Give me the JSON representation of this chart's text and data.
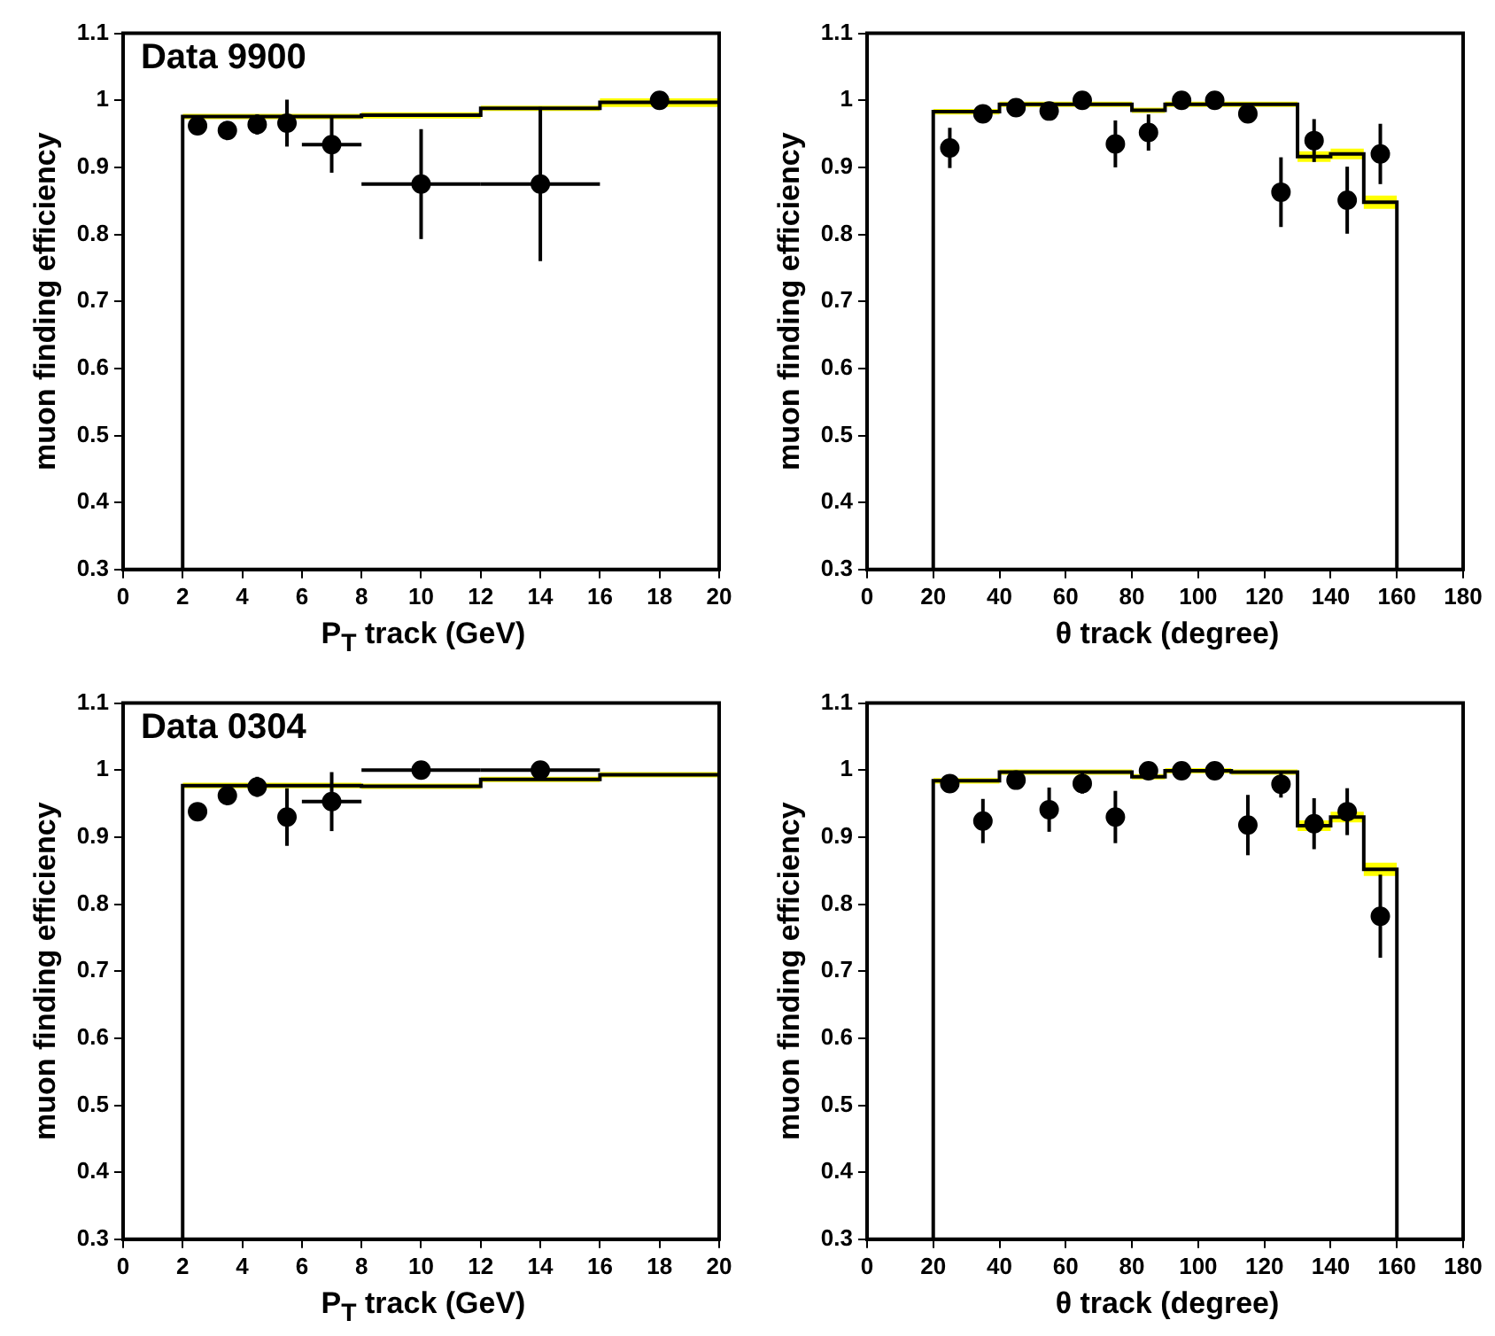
{
  "chart_data": [
    {
      "type": "step",
      "title": "Data 9900",
      "xlabel": "P$_{T}$ track (GeV)",
      "ylabel": "muon finding efficiency",
      "xlim": [
        0,
        20
      ],
      "xticks": [
        0,
        2,
        4,
        6,
        8,
        10,
        12,
        14,
        16,
        18,
        20
      ],
      "ylim": [
        0.3,
        1.1
      ],
      "yticks": [
        0.3,
        0.4,
        0.5,
        0.6,
        0.7,
        0.8,
        0.9,
        1,
        1.1
      ],
      "grid": false,
      "series": [
        {
          "color": "#000000",
          "marker": "none",
          "x": [
            2,
            2,
            8,
            12,
            16,
            20,
            20
          ],
          "values": [
            0.3,
            0.976,
            0.978,
            0.988,
            0.997,
            0.997,
            0.3
          ],
          "lower": [
            null,
            0.972,
            0.973,
            0.984,
            0.99,
            0.99,
            null
          ],
          "upper": [
            null,
            0.98,
            0.982,
            0.992,
            1.003,
            1.003,
            null
          ]
        },
        {
          "type": "scatter",
          "color": "#000000",
          "marker": "circle",
          "x": [
            2.5,
            3.5,
            4.5,
            5.5,
            7,
            10,
            14,
            18
          ],
          "values": [
            0.962,
            0.955,
            0.964,
            0.966,
            0.934,
            0.875,
            0.875,
            1.0
          ],
          "errors": [
            0.01,
            0.01,
            0.015,
            0.035,
            0.042,
            0.082,
            0.115,
            0.005
          ],
          "xerrors": [
            null,
            null,
            null,
            null,
            1,
            2,
            2,
            null
          ]
        }
      ]
    },
    {
      "type": "step",
      "xlabel": "θ track (degree)",
      "ylabel": "muon finding efficiency",
      "xlim": [
        0,
        180
      ],
      "xticks": [
        0,
        20,
        40,
        60,
        80,
        100,
        120,
        140,
        160,
        180
      ],
      "ylim": [
        0.3,
        1.1
      ],
      "yticks": [
        0.3,
        0.4,
        0.5,
        0.6,
        0.7,
        0.8,
        0.9,
        1,
        1.1
      ],
      "grid": false,
      "series": [
        {
          "color": "#000000",
          "marker": "none",
          "x": [
            20,
            20,
            30,
            40,
            50,
            60,
            70,
            80,
            90,
            100,
            110,
            120,
            130,
            140,
            150,
            160,
            160
          ],
          "values": [
            0.3,
            0.983,
            0.983,
            0.994,
            0.994,
            0.994,
            0.994,
            0.985,
            0.994,
            0.994,
            0.994,
            0.994,
            0.916,
            0.92,
            0.848,
            0.848,
            0.3
          ],
          "lower": [
            null,
            0.979,
            0.979,
            0.99,
            0.99,
            0.99,
            0.99,
            0.981,
            0.99,
            0.99,
            0.99,
            0.99,
            0.908,
            0.912,
            0.838,
            0.838,
            null
          ],
          "upper": [
            null,
            0.987,
            0.987,
            0.998,
            0.998,
            0.998,
            0.998,
            0.989,
            0.998,
            0.998,
            0.998,
            0.998,
            0.924,
            0.928,
            0.858,
            0.858,
            null
          ]
        },
        {
          "type": "scatter",
          "color": "#000000",
          "marker": "circle",
          "x": [
            25,
            35,
            45,
            55,
            65,
            75,
            85,
            95,
            105,
            115,
            125,
            135,
            145,
            155
          ],
          "values": [
            0.929,
            0.98,
            0.989,
            0.984,
            1.0,
            0.935,
            0.952,
            1.0,
            1.0,
            0.98,
            0.863,
            0.94,
            0.851,
            0.92
          ],
          "errors": [
            0.03,
            0.01,
            0.01,
            0.01,
            0.005,
            0.035,
            0.027,
            0.005,
            0.005,
            0.012,
            0.052,
            0.032,
            0.05,
            0.045
          ]
        }
      ]
    },
    {
      "type": "step",
      "title": "Data 0304",
      "xlabel": "P$_{T}$ track (GeV)",
      "ylabel": "muon finding efficiency",
      "xlim": [
        0,
        20
      ],
      "xticks": [
        0,
        2,
        4,
        6,
        8,
        10,
        12,
        14,
        16,
        18,
        20
      ],
      "ylim": [
        0.3,
        1.1
      ],
      "yticks": [
        0.3,
        0.4,
        0.5,
        0.6,
        0.7,
        0.8,
        0.9,
        1,
        1.1
      ],
      "grid": false,
      "series": [
        {
          "color": "#000000",
          "marker": "none",
          "x": [
            2,
            2,
            8,
            12,
            16,
            20,
            20
          ],
          "values": [
            0.3,
            0.977,
            0.976,
            0.986,
            0.993,
            0.993,
            0.3
          ],
          "lower": [
            null,
            0.973,
            0.972,
            0.982,
            0.989,
            0.989,
            null
          ],
          "upper": [
            null,
            0.981,
            0.98,
            0.99,
            0.997,
            0.997,
            null
          ]
        },
        {
          "type": "scatter",
          "color": "#000000",
          "marker": "circle",
          "x": [
            2.5,
            3.5,
            4.5,
            5.5,
            7,
            10,
            14
          ],
          "values": [
            0.938,
            0.962,
            0.975,
            0.93,
            0.953,
            1.0,
            1.0
          ],
          "errors": [
            0.008,
            0.01,
            0.015,
            0.043,
            0.044,
            0.005,
            0.005
          ],
          "xerrors": [
            null,
            null,
            null,
            null,
            1,
            2,
            2
          ]
        }
      ]
    },
    {
      "type": "step",
      "xlabel": "θ track (degree)",
      "ylabel": "muon finding efficiency",
      "xlim": [
        0,
        180
      ],
      "xticks": [
        0,
        20,
        40,
        60,
        80,
        100,
        120,
        140,
        160,
        180
      ],
      "ylim": [
        0.3,
        1.1
      ],
      "yticks": [
        0.3,
        0.4,
        0.5,
        0.6,
        0.7,
        0.8,
        0.9,
        1,
        1.1
      ],
      "grid": false,
      "series": [
        {
          "color": "#000000",
          "marker": "none",
          "x": [
            20,
            20,
            30,
            40,
            50,
            60,
            70,
            80,
            90,
            100,
            110,
            120,
            130,
            140,
            150,
            160,
            160
          ],
          "values": [
            0.3,
            0.984,
            0.984,
            0.997,
            0.997,
            0.997,
            0.997,
            0.99,
            0.999,
            0.999,
            0.997,
            0.997,
            0.917,
            0.93,
            0.852,
            0.852,
            0.3
          ],
          "lower": [
            null,
            0.98,
            0.98,
            0.993,
            0.993,
            0.993,
            0.993,
            0.986,
            0.995,
            0.995,
            0.993,
            0.993,
            0.909,
            0.922,
            0.842,
            0.842,
            null
          ],
          "upper": [
            null,
            0.988,
            0.988,
            1.001,
            1.001,
            1.001,
            1.001,
            0.994,
            1.003,
            1.003,
            1.001,
            1.001,
            0.925,
            0.938,
            0.862,
            0.862,
            null
          ]
        },
        {
          "type": "scatter",
          "color": "#000000",
          "marker": "circle",
          "x": [
            25,
            35,
            45,
            55,
            65,
            75,
            85,
            95,
            105,
            115,
            125,
            135,
            145,
            155
          ],
          "values": [
            0.98,
            0.924,
            0.985,
            0.941,
            0.98,
            0.93,
            0.999,
            0.999,
            0.999,
            0.918,
            0.979,
            0.92,
            0.938,
            0.782
          ],
          "errors": [
            0.008,
            0.033,
            0.01,
            0.033,
            0.015,
            0.039,
            0.005,
            0.005,
            0.005,
            0.045,
            0.02,
            0.038,
            0.035,
            0.062
          ]
        }
      ]
    }
  ]
}
